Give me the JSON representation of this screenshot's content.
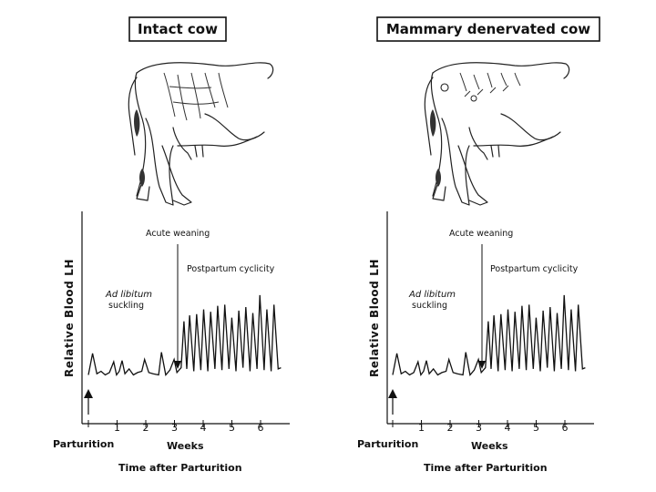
{
  "panels": [
    {
      "title": "Intact cow",
      "ylabel": "Relative Blood LH",
      "xlabel": "Weeks",
      "origin_label": "Parturition",
      "footer": "Time after Parturition",
      "annotations": {
        "weaning": "Acute weaning",
        "cyclicity": "Postpartum cyclicity",
        "ad_libitum": "Ad libitum",
        "suckling": "suckling"
      },
      "ticks": [
        "1",
        "2",
        "3",
        "4",
        "5",
        "6"
      ]
    },
    {
      "title": "Mammary denervated cow",
      "ylabel": "Relative Blood LH",
      "xlabel": "Weeks",
      "origin_label": "Parturition",
      "footer": "Time after Parturition",
      "annotations": {
        "weaning": "Acute weaning",
        "cyclicity": "Postpartum cyclicity",
        "ad_libitum": "Ad libitum",
        "suckling": "suckling"
      },
      "ticks": [
        "1",
        "2",
        "3",
        "4",
        "5",
        "6"
      ]
    }
  ],
  "chart_data": [
    {
      "type": "line",
      "title": "Intact cow",
      "xlabel": "Weeks",
      "ylabel": "Relative Blood LH",
      "xlim": [
        0,
        7
      ],
      "weaning_week": 3.3,
      "series": [
        {
          "x": [
            0,
            0.15,
            0.3,
            0.45,
            0.6,
            0.75,
            0.9,
            1.0,
            1.1,
            1.2,
            1.3,
            1.45,
            1.6,
            1.75,
            1.9,
            2.0,
            2.15,
            2.3,
            2.5,
            2.6,
            2.75,
            2.9,
            3.05,
            3.15,
            3.3,
            3.4,
            3.5,
            3.6,
            3.75,
            3.85,
            4.0,
            4.1,
            4.25,
            4.35,
            4.5,
            4.6,
            4.75,
            4.85,
            5.0,
            5.1,
            5.25,
            5.35,
            5.5,
            5.6,
            5.75,
            5.85,
            6.0,
            6.1,
            6.25,
            6.35,
            6.5,
            6.6,
            6.75,
            6.85
          ],
          "y": [
            0.5,
            2.3,
            0.6,
            0.8,
            0.5,
            0.7,
            1.6,
            0.5,
            0.8,
            1.7,
            0.6,
            1.0,
            0.5,
            0.7,
            0.8,
            1.8,
            0.7,
            0.6,
            0.5,
            2.4,
            0.5,
            0.9,
            1.8,
            0.7,
            1.1,
            5.0,
            1.0,
            5.5,
            0.8,
            5.6,
            0.9,
            6.0,
            0.8,
            5.8,
            1.0,
            6.3,
            0.9,
            6.4,
            1.0,
            5.3,
            0.8,
            5.9,
            1.1,
            6.2,
            0.8,
            5.7,
            1.0,
            7.2,
            0.9,
            6.0,
            0.8,
            6.4,
            1.0,
            1.1
          ]
        }
      ]
    },
    {
      "type": "line",
      "title": "Mammary denervated cow",
      "xlabel": "Weeks",
      "ylabel": "Relative Blood LH",
      "xlim": [
        0,
        7
      ],
      "weaning_week": 3.3,
      "series": [
        {
          "x": [
            0,
            0.15,
            0.3,
            0.45,
            0.6,
            0.75,
            0.9,
            1.0,
            1.1,
            1.2,
            1.3,
            1.45,
            1.6,
            1.75,
            1.9,
            2.0,
            2.15,
            2.3,
            2.5,
            2.6,
            2.75,
            2.9,
            3.05,
            3.15,
            3.3,
            3.4,
            3.5,
            3.6,
            3.75,
            3.85,
            4.0,
            4.1,
            4.25,
            4.35,
            4.5,
            4.6,
            4.75,
            4.85,
            5.0,
            5.1,
            5.25,
            5.35,
            5.5,
            5.6,
            5.75,
            5.85,
            6.0,
            6.1,
            6.25,
            6.35,
            6.5,
            6.6,
            6.75,
            6.85
          ],
          "y": [
            0.5,
            2.3,
            0.6,
            0.8,
            0.5,
            0.7,
            1.6,
            0.5,
            0.8,
            1.7,
            0.6,
            1.0,
            0.5,
            0.7,
            0.8,
            1.8,
            0.7,
            0.6,
            0.5,
            2.4,
            0.5,
            0.9,
            1.8,
            0.7,
            1.1,
            5.0,
            1.0,
            5.5,
            0.8,
            5.6,
            0.9,
            6.0,
            0.8,
            5.8,
            1.0,
            6.3,
            0.9,
            6.4,
            1.0,
            5.3,
            0.8,
            5.9,
            1.1,
            6.2,
            0.8,
            5.7,
            1.0,
            7.2,
            0.9,
            6.0,
            0.8,
            6.4,
            1.0,
            1.1
          ]
        }
      ]
    }
  ]
}
